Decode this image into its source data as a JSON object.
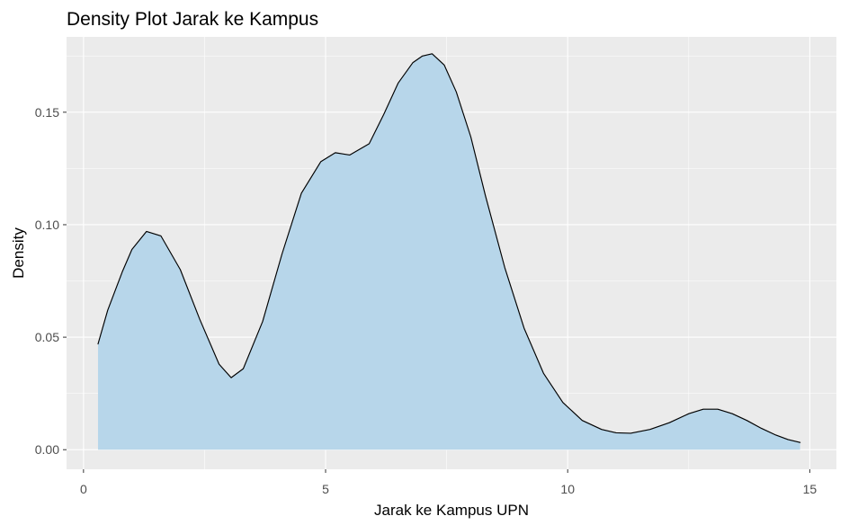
{
  "chart_data": {
    "type": "area",
    "title": "Density Plot Jarak ke Kampus",
    "xlabel": "Jarak ke Kampus UPN",
    "ylabel": "Density",
    "xlim": [
      -0.35,
      15.55
    ],
    "ylim": [
      -0.0087,
      0.1835
    ],
    "x_ticks": [
      0,
      5,
      10,
      15
    ],
    "x_tick_labels": [
      "0",
      "5",
      "10",
      "15"
    ],
    "y_ticks": [
      0.0,
      0.05,
      0.1,
      0.15
    ],
    "y_tick_labels": [
      "0.00",
      "0.05",
      "0.10",
      "0.15"
    ],
    "grid": true,
    "legend": "none",
    "colors": {
      "panel_background": "#ebebeb",
      "grid_line": "#ffffff",
      "fill": "#b7d6ea",
      "line": "#000000",
      "tick_label": "#4d4d4d"
    },
    "series": [
      {
        "x": [
          0.3,
          0.5,
          0.8,
          1.0,
          1.3,
          1.6,
          2.0,
          2.4,
          2.8,
          3.05,
          3.3,
          3.7,
          4.1,
          4.5,
          4.9,
          5.2,
          5.5,
          5.9,
          6.2,
          6.5,
          6.8,
          7.0,
          7.2,
          7.45,
          7.7,
          8.0,
          8.3,
          8.7,
          9.1,
          9.5,
          9.9,
          10.3,
          10.7,
          11.0,
          11.3,
          11.7,
          12.1,
          12.5,
          12.8,
          13.1,
          13.4,
          13.7,
          14.0,
          14.3,
          14.55,
          14.8
        ],
        "y": [
          0.047,
          0.062,
          0.079,
          0.089,
          0.097,
          0.095,
          0.08,
          0.058,
          0.038,
          0.032,
          0.036,
          0.057,
          0.087,
          0.114,
          0.128,
          0.132,
          0.131,
          0.136,
          0.149,
          0.163,
          0.172,
          0.175,
          0.176,
          0.171,
          0.159,
          0.139,
          0.113,
          0.081,
          0.054,
          0.034,
          0.021,
          0.013,
          0.009,
          0.0075,
          0.0073,
          0.009,
          0.012,
          0.016,
          0.018,
          0.018,
          0.016,
          0.013,
          0.0095,
          0.0065,
          0.0045,
          0.0032
        ]
      }
    ]
  }
}
